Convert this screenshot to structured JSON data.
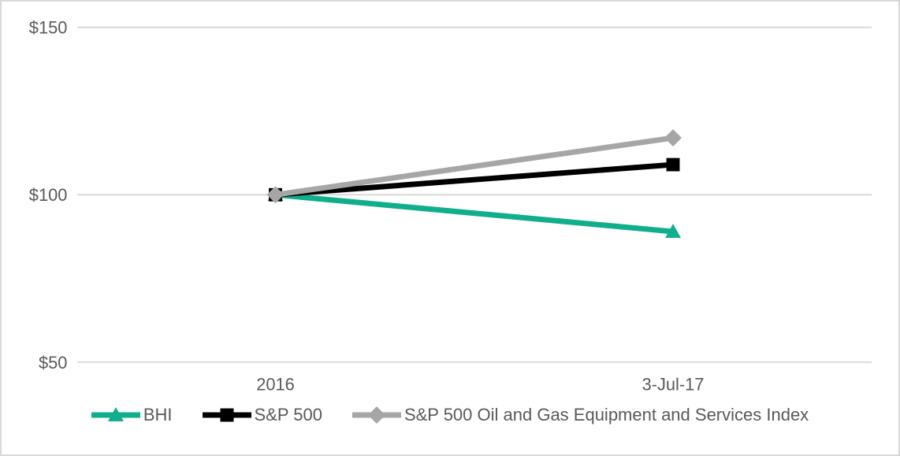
{
  "chart_data": {
    "type": "line",
    "title": "",
    "x_categories": [
      "2016",
      "3-Jul-17"
    ],
    "ylim": [
      50,
      150
    ],
    "yticks": [
      {
        "value": 150,
        "label": "$150"
      },
      {
        "value": 100,
        "label": "$100"
      },
      {
        "value": 50,
        "label": "$50"
      }
    ],
    "grid": true,
    "legend_position": "bottom",
    "series": [
      {
        "name": "BHI",
        "marker": "triangle",
        "color": "#0FAE8C",
        "values": [
          100,
          89
        ]
      },
      {
        "name": "S&P 500",
        "marker": "square",
        "color": "#000000",
        "values": [
          100,
          109
        ]
      },
      {
        "name": "S&P 500 Oil and Gas Equipment and Services Index",
        "marker": "diamond",
        "color": "#A6A6A6",
        "values": [
          100,
          117
        ]
      }
    ],
    "colors": {
      "axis_text": "#595959",
      "gridline": "#D9D9D9",
      "border": "#D9D9D9",
      "background": "#FFFFFF"
    }
  }
}
